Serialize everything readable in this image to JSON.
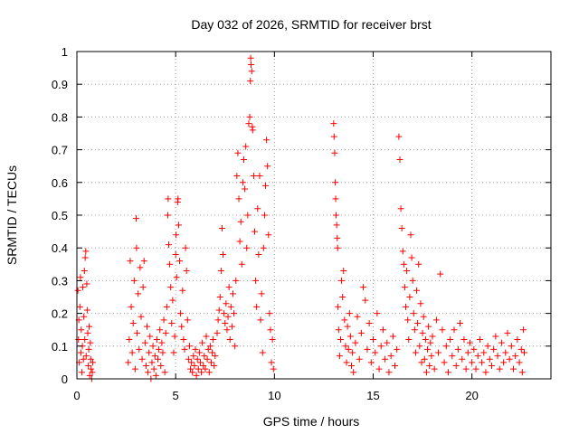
{
  "chart_data": {
    "type": "scatter",
    "title": "Day 032 of 2026, SRMTID for receiver brst",
    "xlabel": "GPS time / hours",
    "ylabel": "SRMTID / TECUs",
    "xlim": [
      0,
      24
    ],
    "ylim": [
      0,
      1
    ],
    "xticks": [
      0,
      5,
      10,
      15,
      20
    ],
    "xtick_labels": [
      "0",
      "5",
      "10",
      "15",
      "20"
    ],
    "yticks": [
      0,
      0.1,
      0.2,
      0.3,
      0.4,
      0.5,
      0.6,
      0.7,
      0.8,
      0.9,
      1
    ],
    "ytick_labels": [
      "0",
      "0.1",
      "0.2",
      "0.3",
      "0.4",
      "0.5",
      "0.6",
      "0.7",
      "0.8",
      "0.9",
      "1"
    ],
    "grid": true,
    "marker": "+",
    "color": "#ff0000",
    "series": [
      {
        "name": "SRMTID",
        "points": [
          [
            0.05,
            0.27
          ],
          [
            0.08,
            0.12
          ],
          [
            0.1,
            0.18
          ],
          [
            0.12,
            0.05
          ],
          [
            0.15,
            0.22
          ],
          [
            0.18,
            0.31
          ],
          [
            0.2,
            0.08
          ],
          [
            0.22,
            0.15
          ],
          [
            0.25,
            0.02
          ],
          [
            0.28,
            0.1
          ],
          [
            0.3,
            0.28
          ],
          [
            0.33,
            0.06
          ],
          [
            0.35,
            0.19
          ],
          [
            0.38,
            0.33
          ],
          [
            0.4,
            0.12
          ],
          [
            0.42,
            0.37
          ],
          [
            0.45,
            0.39
          ],
          [
            0.47,
            0.07
          ],
          [
            0.5,
            0.29
          ],
          [
            0.52,
            0.21
          ],
          [
            0.55,
            0.14
          ],
          [
            0.58,
            0.04
          ],
          [
            0.6,
            0.09
          ],
          [
            0.62,
            0.16
          ],
          [
            0.65,
            0.01
          ],
          [
            0.68,
            0.11
          ],
          [
            0.7,
            0.06
          ],
          [
            0.72,
            0.03
          ],
          [
            0.75,
            0.0
          ],
          [
            0.78,
            0.02
          ],
          [
            0.8,
            0.05
          ],
          [
            2.6,
            0.05
          ],
          [
            2.65,
            0.12
          ],
          [
            2.7,
            0.36
          ],
          [
            2.75,
            0.22
          ],
          [
            2.8,
            0.08
          ],
          [
            2.85,
            0.17
          ],
          [
            2.9,
            0.3
          ],
          [
            2.95,
            0.03
          ],
          [
            3.0,
            0.49
          ],
          [
            3.02,
            0.4
          ],
          [
            3.05,
            0.14
          ],
          [
            3.1,
            0.26
          ],
          [
            3.15,
            0.09
          ],
          [
            3.2,
            0.34
          ],
          [
            3.25,
            0.19
          ],
          [
            3.3,
            0.06
          ],
          [
            3.35,
            0.28
          ],
          [
            3.4,
            0.36
          ],
          [
            3.45,
            0.11
          ],
          [
            3.5,
            0.04
          ],
          [
            3.55,
            0.16
          ],
          [
            3.6,
            0.02
          ],
          [
            3.65,
            0.08
          ],
          [
            3.7,
            0.13
          ],
          [
            3.75,
            0.0
          ],
          [
            3.8,
            0.05
          ],
          [
            3.85,
            0.1
          ],
          [
            3.9,
            0.03
          ],
          [
            3.95,
            0.07
          ],
          [
            4.0,
            0.01
          ],
          [
            4.05,
            0.12
          ],
          [
            4.1,
            0.06
          ],
          [
            4.15,
            0.09
          ],
          [
            4.2,
            0.15
          ],
          [
            4.25,
            0.04
          ],
          [
            4.3,
            0.11
          ],
          [
            4.35,
            0.08
          ],
          [
            4.4,
            0.18
          ],
          [
            4.45,
            0.02
          ],
          [
            4.5,
            0.14
          ],
          [
            4.55,
            0.22
          ],
          [
            4.6,
            0.5
          ],
          [
            4.62,
            0.55
          ],
          [
            4.65,
            0.41
          ],
          [
            4.7,
            0.35
          ],
          [
            4.75,
            0.28
          ],
          [
            4.8,
            0.17
          ],
          [
            4.85,
            0.24
          ],
          [
            4.9,
            0.08
          ],
          [
            4.95,
            0.13
          ],
          [
            5.0,
            0.38
          ],
          [
            5.02,
            0.44
          ],
          [
            5.05,
            0.31
          ],
          [
            5.1,
            0.54
          ],
          [
            5.12,
            0.55
          ],
          [
            5.15,
            0.47
          ],
          [
            5.2,
            0.36
          ],
          [
            5.25,
            0.2
          ],
          [
            5.3,
            0.16
          ],
          [
            5.35,
            0.27
          ],
          [
            5.4,
            0.12
          ],
          [
            5.45,
            0.09
          ],
          [
            5.5,
            0.4
          ],
          [
            5.55,
            0.33
          ],
          [
            5.6,
            0.18
          ],
          [
            5.65,
            0.06
          ],
          [
            5.7,
            0.1
          ],
          [
            5.75,
            0.03
          ],
          [
            5.8,
            0.05
          ],
          [
            5.85,
            0.02
          ],
          [
            5.9,
            0.07
          ],
          [
            5.95,
            0.04
          ],
          [
            6.0,
            0.09
          ],
          [
            6.05,
            0.01
          ],
          [
            6.1,
            0.06
          ],
          [
            6.15,
            0.03
          ],
          [
            6.2,
            0.08
          ],
          [
            6.25,
            0.05
          ],
          [
            6.3,
            0.02
          ],
          [
            6.35,
            0.11
          ],
          [
            6.4,
            0.04
          ],
          [
            6.45,
            0.07
          ],
          [
            6.5,
            0.03
          ],
          [
            6.55,
            0.13
          ],
          [
            6.6,
            0.06
          ],
          [
            6.65,
            0.09
          ],
          [
            6.7,
            0.02
          ],
          [
            6.75,
            0.1
          ],
          [
            6.8,
            0.05
          ],
          [
            6.85,
            0.08
          ],
          [
            6.9,
            0.12
          ],
          [
            6.95,
            0.04
          ],
          [
            7.0,
            0.07
          ],
          [
            7.1,
            0.14
          ],
          [
            7.15,
            0.18
          ],
          [
            7.2,
            0.21
          ],
          [
            7.25,
            0.25
          ],
          [
            7.3,
            0.33
          ],
          [
            7.35,
            0.46
          ],
          [
            7.4,
            0.38
          ],
          [
            7.45,
            0.2
          ],
          [
            7.5,
            0.17
          ],
          [
            7.55,
            0.23
          ],
          [
            7.6,
            0.15
          ],
          [
            7.65,
            0.19
          ],
          [
            7.7,
            0.28
          ],
          [
            7.75,
            0.12
          ],
          [
            7.8,
            0.22
          ],
          [
            7.85,
            0.16
          ],
          [
            7.9,
            0.26
          ],
          [
            7.95,
            0.2
          ],
          [
            8.0,
            0.1
          ],
          [
            8.05,
            0.3
          ],
          [
            8.1,
            0.62
          ],
          [
            8.15,
            0.69
          ],
          [
            8.2,
            0.55
          ],
          [
            8.25,
            0.42
          ],
          [
            8.3,
            0.48
          ],
          [
            8.35,
            0.35
          ],
          [
            8.4,
            0.6
          ],
          [
            8.45,
            0.67
          ],
          [
            8.5,
            0.58
          ],
          [
            8.55,
            0.71
          ],
          [
            8.6,
            0.4
          ],
          [
            8.65,
            0.5
          ],
          [
            8.7,
            0.78
          ],
          [
            8.75,
            0.8
          ],
          [
            8.78,
            0.91
          ],
          [
            8.8,
            0.98
          ],
          [
            8.82,
            0.96
          ],
          [
            8.85,
            0.94
          ],
          [
            8.88,
            0.77
          ],
          [
            8.9,
            0.76
          ],
          [
            8.95,
            0.62
          ],
          [
            9.0,
            0.45
          ],
          [
            9.05,
            0.3
          ],
          [
            9.1,
            0.22
          ],
          [
            9.15,
            0.52
          ],
          [
            9.2,
            0.38
          ],
          [
            9.25,
            0.62
          ],
          [
            9.3,
            0.18
          ],
          [
            9.35,
            0.26
          ],
          [
            9.4,
            0.08
          ],
          [
            9.45,
            0.4
          ],
          [
            9.5,
            0.5
          ],
          [
            9.55,
            0.59
          ],
          [
            9.6,
            0.73
          ],
          [
            9.65,
            0.65
          ],
          [
            9.7,
            0.44
          ],
          [
            9.75,
            0.2
          ],
          [
            9.8,
            0.15
          ],
          [
            9.85,
            0.05
          ],
          [
            9.9,
            0.12
          ],
          [
            9.95,
            0.03
          ],
          [
            13.0,
            0.78
          ],
          [
            13.02,
            0.74
          ],
          [
            13.05,
            0.69
          ],
          [
            13.08,
            0.6
          ],
          [
            13.1,
            0.55
          ],
          [
            13.12,
            0.5
          ],
          [
            13.15,
            0.47
          ],
          [
            13.18,
            0.43
          ],
          [
            13.2,
            0.4
          ],
          [
            13.22,
            0.22
          ],
          [
            13.25,
            0.15
          ],
          [
            13.3,
            0.07
          ],
          [
            13.35,
            0.12
          ],
          [
            13.4,
            0.3
          ],
          [
            13.45,
            0.25
          ],
          [
            13.5,
            0.33
          ],
          [
            13.55,
            0.18
          ],
          [
            13.6,
            0.1
          ],
          [
            13.65,
            0.05
          ],
          [
            13.7,
            0.16
          ],
          [
            13.75,
            0.09
          ],
          [
            13.8,
            0.2
          ],
          [
            13.85,
            0.13
          ],
          [
            13.9,
            0.04
          ],
          [
            13.95,
            0.08
          ],
          [
            14.0,
            0.02
          ],
          [
            14.1,
            0.11
          ],
          [
            14.2,
            0.19
          ],
          [
            14.3,
            0.06
          ],
          [
            14.4,
            0.14
          ],
          [
            14.5,
            0.28
          ],
          [
            14.6,
            0.24
          ],
          [
            14.7,
            0.09
          ],
          [
            14.8,
            0.17
          ],
          [
            14.9,
            0.05
          ],
          [
            15.0,
            0.12
          ],
          [
            15.1,
            0.08
          ],
          [
            15.2,
            0.2
          ],
          [
            15.3,
            0.03
          ],
          [
            15.4,
            0.1
          ],
          [
            15.5,
            0.15
          ],
          [
            15.6,
            0.06
          ],
          [
            15.7,
            0.11
          ],
          [
            15.8,
            0.02
          ],
          [
            15.9,
            0.07
          ],
          [
            16.0,
            0.13
          ],
          [
            16.1,
            0.04
          ],
          [
            16.2,
            0.09
          ],
          [
            16.3,
            0.74
          ],
          [
            16.35,
            0.67
          ],
          [
            16.4,
            0.52
          ],
          [
            16.45,
            0.46
          ],
          [
            16.5,
            0.39
          ],
          [
            16.55,
            0.35
          ],
          [
            16.6,
            0.28
          ],
          [
            16.65,
            0.22
          ],
          [
            16.7,
            0.33
          ],
          [
            16.75,
            0.18
          ],
          [
            16.8,
            0.12
          ],
          [
            16.85,
            0.25
          ],
          [
            16.9,
            0.44
          ],
          [
            16.95,
            0.37
          ],
          [
            17.0,
            0.3
          ],
          [
            17.05,
            0.2
          ],
          [
            17.1,
            0.15
          ],
          [
            17.15,
            0.08
          ],
          [
            17.2,
            0.27
          ],
          [
            17.25,
            0.17
          ],
          [
            17.3,
            0.35
          ],
          [
            17.35,
            0.1
          ],
          [
            17.4,
            0.23
          ],
          [
            17.45,
            0.05
          ],
          [
            17.5,
            0.14
          ],
          [
            17.55,
            0.19
          ],
          [
            17.6,
            0.06
          ],
          [
            17.65,
            0.12
          ],
          [
            17.7,
            0.02
          ],
          [
            17.75,
            0.09
          ],
          [
            17.8,
            0.16
          ],
          [
            17.85,
            0.04
          ],
          [
            17.9,
            0.11
          ],
          [
            17.95,
            0.07
          ],
          [
            18.0,
            0.13
          ],
          [
            18.1,
            0.03
          ],
          [
            18.2,
            0.18
          ],
          [
            18.3,
            0.08
          ],
          [
            18.4,
            0.32
          ],
          [
            18.5,
            0.15
          ],
          [
            18.6,
            0.05
          ],
          [
            18.7,
            0.1
          ],
          [
            18.8,
            0.02
          ],
          [
            18.9,
            0.12
          ],
          [
            19.0,
            0.07
          ],
          [
            19.1,
            0.15
          ],
          [
            19.2,
            0.04
          ],
          [
            19.3,
            0.09
          ],
          [
            19.4,
            0.17
          ],
          [
            19.5,
            0.06
          ],
          [
            19.6,
            0.12
          ],
          [
            19.7,
            0.03
          ],
          [
            19.8,
            0.08
          ],
          [
            19.9,
            0.11
          ],
          [
            20.0,
            0.05
          ],
          [
            20.1,
            0.09
          ],
          [
            20.2,
            0.03
          ],
          [
            20.3,
            0.07
          ],
          [
            20.4,
            0.12
          ],
          [
            20.5,
            0.05
          ],
          [
            20.6,
            0.08
          ],
          [
            20.7,
            0.02
          ],
          [
            20.8,
            0.1
          ],
          [
            20.9,
            0.06
          ],
          [
            21.0,
            0.04
          ],
          [
            21.1,
            0.09
          ],
          [
            21.2,
            0.13
          ],
          [
            21.3,
            0.07
          ],
          [
            21.4,
            0.03
          ],
          [
            21.5,
            0.11
          ],
          [
            21.6,
            0.05
          ],
          [
            21.7,
            0.08
          ],
          [
            21.8,
            0.14
          ],
          [
            21.9,
            0.06
          ],
          [
            22.0,
            0.1
          ],
          [
            22.1,
            0.03
          ],
          [
            22.2,
            0.07
          ],
          [
            22.3,
            0.12
          ],
          [
            22.4,
            0.05
          ],
          [
            22.5,
            0.09
          ],
          [
            22.55,
            0.02
          ],
          [
            22.6,
            0.15
          ],
          [
            22.65,
            0.08
          ]
        ]
      }
    ]
  }
}
